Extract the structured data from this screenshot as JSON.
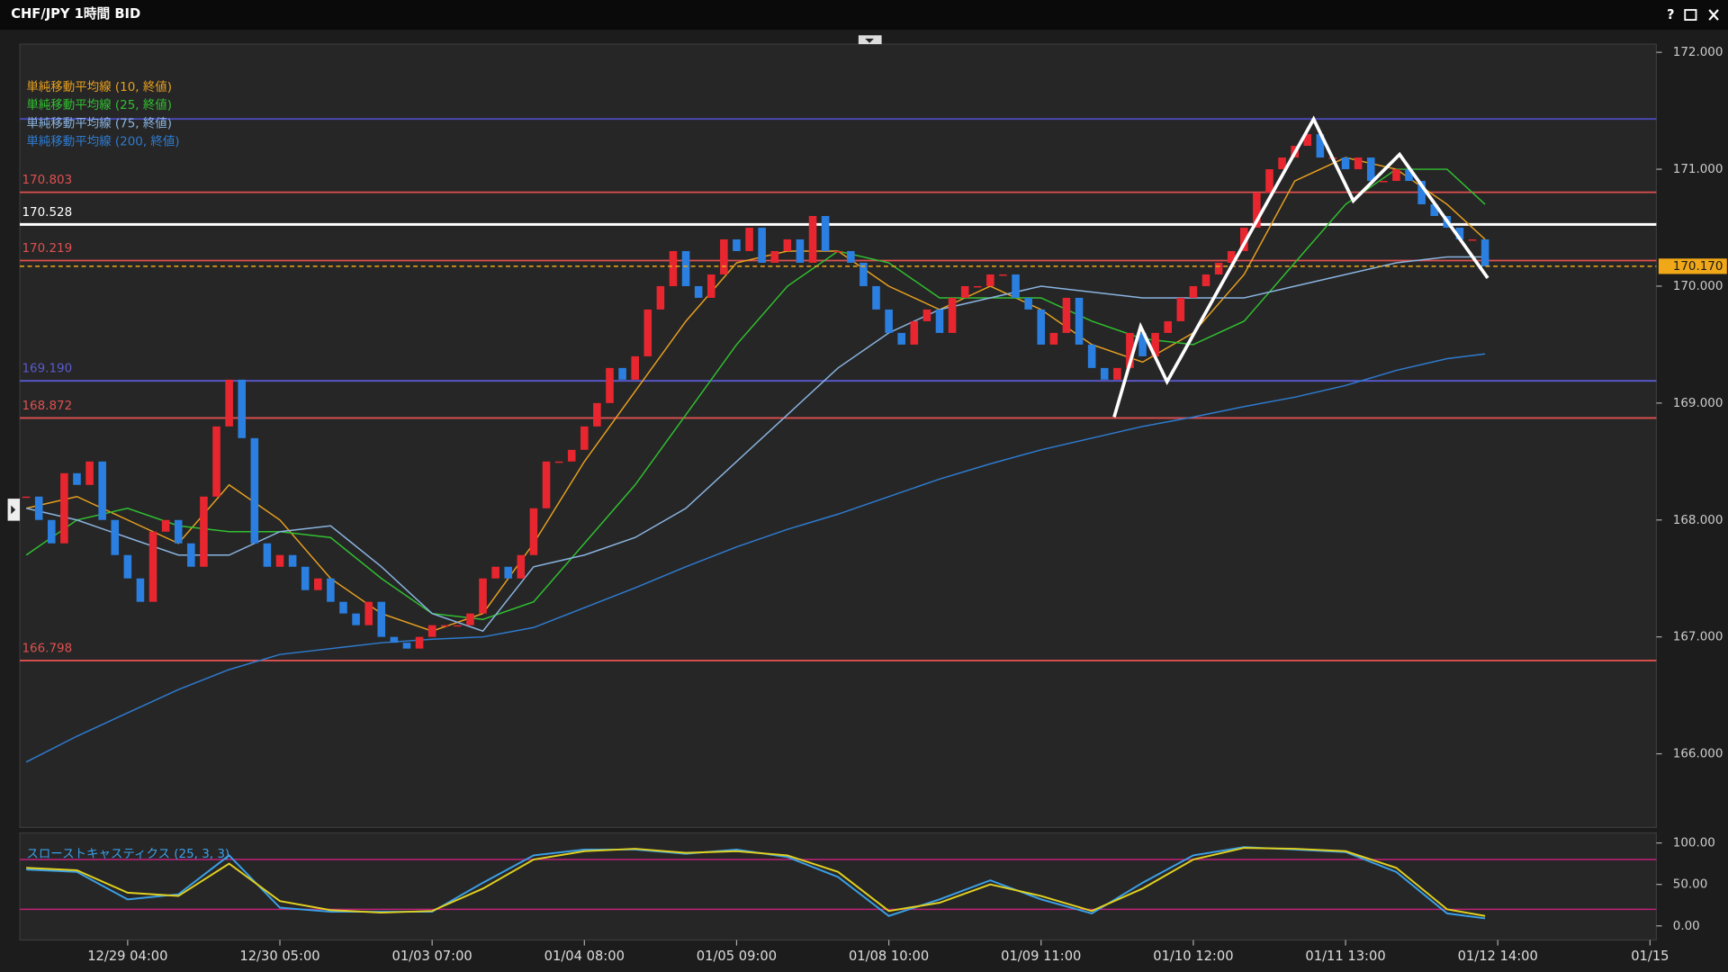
{
  "title": "CHF/JPY 1時間 BID",
  "help_button": "?",
  "chart_data": [
    {
      "type": "candlestick",
      "values": [
        168.2,
        168.0,
        167.8,
        168.4,
        168.3,
        168.5,
        168.0,
        167.7,
        167.5,
        167.3,
        167.9,
        168.0,
        167.8,
        167.6,
        168.2,
        168.8,
        169.2,
        168.7,
        167.8,
        167.6,
        167.7,
        167.6,
        167.4,
        167.5,
        167.3,
        167.2,
        167.1,
        167.3,
        167.0,
        166.95,
        166.9,
        167.0,
        167.1,
        167.1,
        167.1,
        167.2,
        167.5,
        167.6,
        167.5,
        167.7,
        168.1,
        168.5,
        168.5,
        168.6,
        168.8,
        169.0,
        169.3,
        169.2,
        169.4,
        169.8,
        170.0,
        170.3,
        170.0,
        169.9,
        170.1,
        170.4,
        170.3,
        170.5,
        170.2,
        170.3,
        170.4,
        170.2,
        170.6,
        170.3,
        170.3,
        170.2,
        170.0,
        169.8,
        169.6,
        169.5,
        169.7,
        169.8,
        169.6,
        169.9,
        170.0,
        170.0,
        170.1,
        170.1,
        169.9,
        169.8,
        169.5,
        169.6,
        169.9,
        169.5,
        169.3,
        169.2,
        169.3,
        169.6,
        169.4,
        169.6,
        169.7,
        169.9,
        170.0,
        170.1,
        170.2,
        170.3,
        170.5,
        170.8,
        171.0,
        171.1,
        171.2,
        171.3,
        171.1,
        171.1,
        171.0,
        171.1,
        170.9,
        170.9,
        171.0,
        170.9,
        170.7,
        170.6,
        170.5,
        170.4,
        170.4,
        170.17
      ],
      "up_color": "#e8262f",
      "down_color": "#2a7fe0",
      "xlim": [
        -0.5,
        128.5
      ],
      "xticks": [
        {
          "value": 8,
          "label": "12/29 04:00"
        },
        {
          "value": 20,
          "label": "12/30 05:00"
        },
        {
          "value": 32,
          "label": "01/03 07:00"
        },
        {
          "value": 44,
          "label": "01/04 08:00"
        },
        {
          "value": 56,
          "label": "01/05 09:00"
        },
        {
          "value": 68,
          "label": "01/08 10:00"
        },
        {
          "value": 80,
          "label": "01/09 11:00"
        },
        {
          "value": 92,
          "label": "01/10 12:00"
        },
        {
          "value": 104,
          "label": "01/11 13:00"
        },
        {
          "value": 116,
          "label": "01/12 14:00"
        },
        {
          "value": 128,
          "label": "01/15"
        }
      ],
      "ylim": [
        165.37,
        172.07
      ],
      "yticks": [
        {
          "value": 166,
          "label": "166.000"
        },
        {
          "value": 167,
          "label": "167.000"
        },
        {
          "value": 168,
          "label": "168.000"
        },
        {
          "value": 169,
          "label": "169.000"
        },
        {
          "value": 170,
          "label": "170.000"
        },
        {
          "value": 171,
          "label": "171.000"
        },
        {
          "value": 172,
          "label": "172.000"
        }
      ],
      "grid": false,
      "series_x": [
        0,
        4,
        8,
        12,
        16,
        20,
        24,
        28,
        32,
        36,
        40,
        44,
        48,
        52,
        56,
        60,
        64,
        68,
        72,
        76,
        80,
        84,
        88,
        92,
        96,
        100,
        104,
        108,
        112,
        115
      ],
      "series": [
        {
          "name": "単純移動平均線 (10, 終値)",
          "color": "#e8a020",
          "values": [
            168.1,
            168.2,
            168.0,
            167.8,
            168.3,
            168.0,
            167.5,
            167.2,
            167.05,
            167.2,
            167.8,
            168.5,
            169.1,
            169.7,
            170.2,
            170.3,
            170.3,
            170.0,
            169.8,
            170.0,
            169.8,
            169.5,
            169.35,
            169.6,
            170.1,
            170.9,
            171.1,
            171.0,
            170.7,
            170.4
          ]
        },
        {
          "name": "単純移動平均線 (25, 終値)",
          "color": "#30c030",
          "values": [
            167.7,
            168.0,
            168.1,
            167.95,
            167.9,
            167.9,
            167.85,
            167.5,
            167.2,
            167.15,
            167.3,
            167.8,
            168.3,
            168.9,
            169.5,
            170.0,
            170.3,
            170.2,
            169.9,
            169.9,
            169.9,
            169.7,
            169.55,
            169.5,
            169.7,
            170.2,
            170.7,
            171.0,
            171.0,
            170.7
          ]
        },
        {
          "name": "単純移動平均線 (75, 終値)",
          "color": "#8ab4e0",
          "values": [
            168.1,
            168.0,
            167.85,
            167.7,
            167.7,
            167.9,
            167.95,
            167.6,
            167.2,
            167.05,
            167.6,
            167.7,
            167.85,
            168.1,
            168.5,
            168.9,
            169.3,
            169.6,
            169.8,
            169.9,
            170.0,
            169.95,
            169.9,
            169.9,
            169.9,
            170.0,
            170.1,
            170.2,
            170.25,
            170.25
          ]
        },
        {
          "name": "単純移動平均線 (200, 終値)",
          "color": "#2e7bd0",
          "values": [
            165.93,
            166.15,
            166.35,
            166.55,
            166.72,
            166.85,
            166.9,
            166.95,
            166.98,
            167.0,
            167.08,
            167.25,
            167.42,
            167.6,
            167.77,
            167.92,
            168.05,
            168.2,
            168.35,
            168.48,
            168.6,
            168.7,
            168.8,
            168.88,
            168.97,
            169.05,
            169.15,
            169.28,
            169.38,
            169.42
          ]
        }
      ],
      "levels": [
        {
          "value": 171.43,
          "color": "#4a4ab8",
          "labeled": false
        },
        {
          "value": 170.803,
          "color": "#e05050",
          "labeled": true
        },
        {
          "value": 170.528,
          "color": "#ffffff",
          "labeled": true
        },
        {
          "value": 170.219,
          "color": "#e05050",
          "labeled": true
        },
        {
          "value": 169.19,
          "color": "#5a5ad0",
          "label": "169.190",
          "labeled": true
        },
        {
          "value": 168.872,
          "color": "#e05050",
          "labeled": true
        },
        {
          "value": 166.798,
          "color": "#e05050",
          "labeled": true
        }
      ],
      "current_price": {
        "value": 170.17,
        "label": "170.170",
        "color": "#f0a818"
      }
    },
    {
      "type": "line",
      "title": "スローストキャスティクス (25, 3, 3)",
      "x": [
        0,
        4,
        8,
        12,
        16,
        20,
        24,
        28,
        32,
        36,
        40,
        44,
        48,
        52,
        56,
        60,
        64,
        68,
        72,
        76,
        80,
        84,
        88,
        92,
        96,
        100,
        104,
        108,
        112,
        115
      ],
      "series": [
        {
          "color": "#3aa0e8",
          "values": [
            68,
            65,
            32,
            38,
            85,
            22,
            17,
            17,
            17,
            52,
            85,
            92,
            92,
            87,
            92,
            83,
            59,
            12,
            32,
            55,
            32,
            15,
            52,
            85,
            95,
            92,
            89,
            65,
            15,
            9
          ]
        },
        {
          "color": "#e0d020",
          "values": [
            70,
            67,
            40,
            36,
            75,
            30,
            19,
            16,
            18,
            45,
            80,
            90,
            93,
            88,
            90,
            85,
            65,
            18,
            28,
            50,
            36,
            18,
            45,
            80,
            94,
            93,
            90,
            70,
            20,
            12
          ]
        }
      ],
      "ylim": [
        -17,
        112
      ],
      "yticks": [
        {
          "value": 0,
          "label": "0.00"
        },
        {
          "value": 50,
          "label": "50.00"
        },
        {
          "value": 100,
          "label": "100.00"
        }
      ],
      "levels": [
        80,
        20
      ],
      "level_color": "#c0207a"
    }
  ]
}
